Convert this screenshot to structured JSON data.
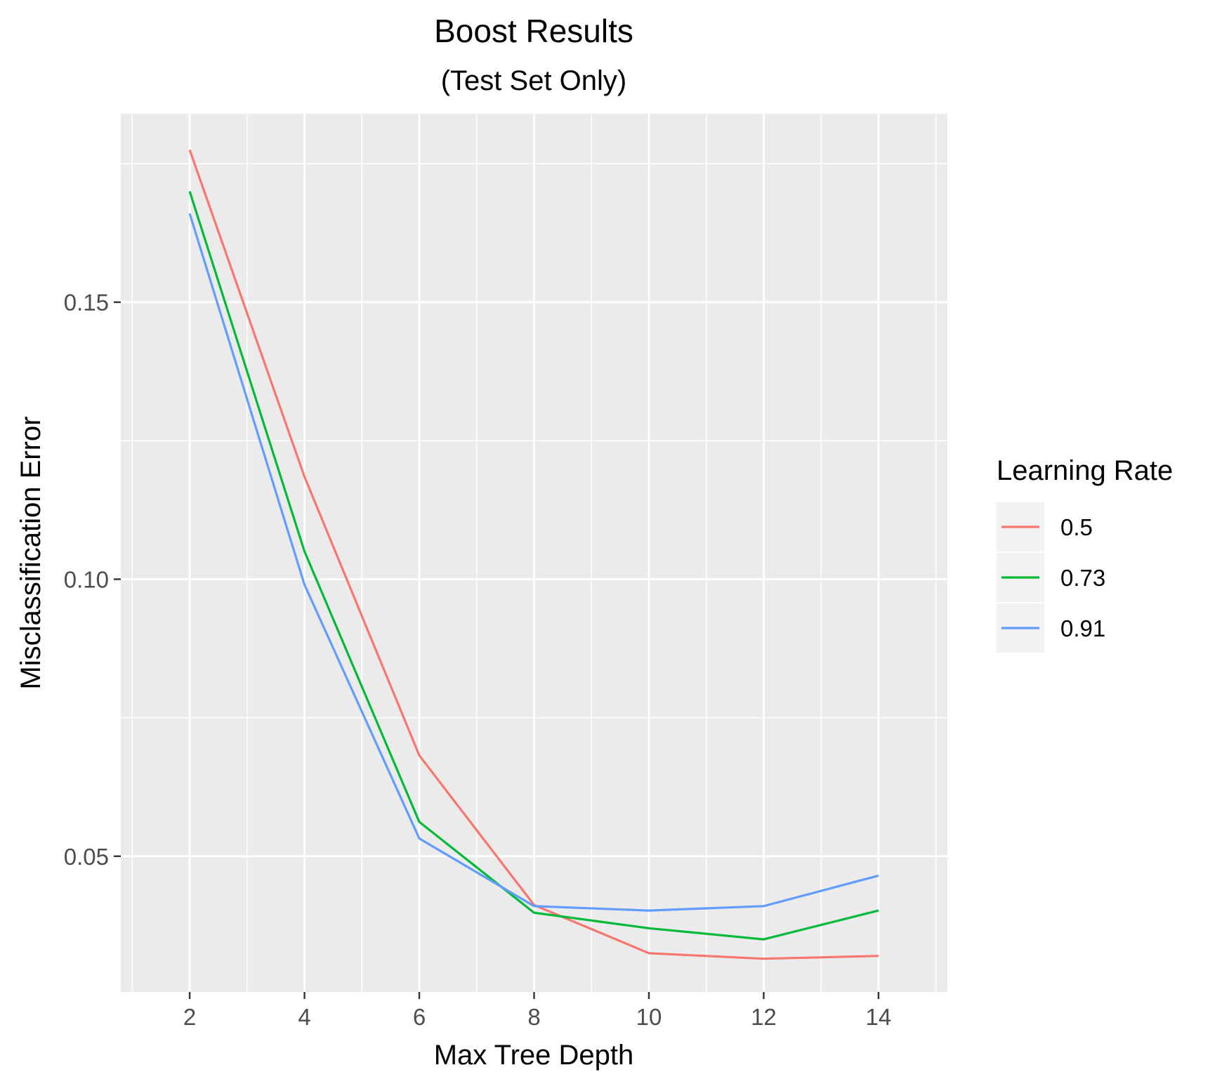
{
  "chart_data": {
    "type": "line",
    "title": "Boost Results",
    "subtitle": "(Test Set Only)",
    "xlabel": "Max Tree Depth",
    "ylabel": "Misclassification Error",
    "x": [
      2,
      4,
      6,
      8,
      10,
      12,
      14
    ],
    "xticks": [
      "2",
      "4",
      "6",
      "8",
      "10",
      "12",
      "14"
    ],
    "yticks": [
      "0.05",
      "0.10",
      "0.15"
    ],
    "xlim": [
      0.8,
      15.2
    ],
    "ylim": [
      0.0255,
      0.184
    ],
    "grid": true,
    "background_color": "#ebebeb",
    "legend": {
      "title": "Learning Rate",
      "placement": "right",
      "entries": [
        "0.5",
        "0.73",
        "0.91"
      ]
    },
    "series": [
      {
        "name": "0.5",
        "color": "#f8766d",
        "values": [
          0.1775,
          0.1185,
          0.0682,
          0.0412,
          0.0325,
          0.0315,
          0.032
        ]
      },
      {
        "name": "0.73",
        "color": "#00ba38",
        "values": [
          0.17,
          0.105,
          0.0562,
          0.0398,
          0.037,
          0.035,
          0.0402
        ]
      },
      {
        "name": "0.91",
        "color": "#619cff",
        "values": [
          0.166,
          0.099,
          0.0532,
          0.041,
          0.0402,
          0.041,
          0.0465
        ]
      }
    ]
  }
}
